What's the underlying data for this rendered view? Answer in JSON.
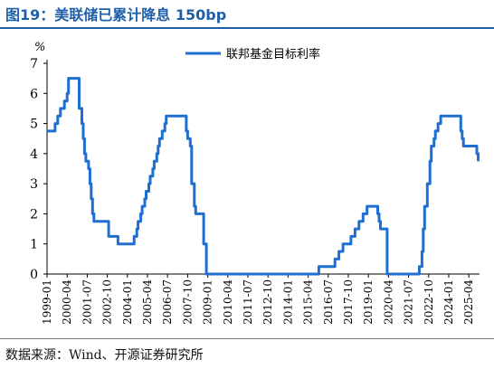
{
  "figure": {
    "title": "图19：美联储已累计降息 150bp",
    "source": "数据来源：Wind、开源证券研究所"
  },
  "colors": {
    "title": "#1f5fa8",
    "series": "#1e6fd1",
    "axis": "#000000"
  },
  "chart_data": {
    "type": "line",
    "title": "",
    "xlabel": "",
    "ylabel": "%",
    "ylim": [
      0,
      7
    ],
    "yticks": [
      "0",
      "1",
      "2",
      "3",
      "4",
      "5",
      "6",
      "7"
    ],
    "xticks": [
      "1999-01",
      "2000-04",
      "2001-07",
      "2002-10",
      "2004-01",
      "2005-04",
      "2006-07",
      "2007-10",
      "2009-01",
      "2010-04",
      "2011-07",
      "2012-10",
      "2014-01",
      "2015-04",
      "2016-07",
      "2017-10",
      "2019-01",
      "2020-04",
      "2021-07",
      "2022-10",
      "2024-01",
      "2025-04"
    ],
    "grid": false,
    "legend": {
      "position": "top-right",
      "entries": [
        "联邦基金目标利率"
      ]
    },
    "series": [
      {
        "name": "联邦基金目标利率",
        "color": "#1e6fd1",
        "points": [
          [
            "1999-01",
            4.75
          ],
          [
            "1999-06",
            4.75
          ],
          [
            "1999-07",
            5.0
          ],
          [
            "1999-09",
            5.25
          ],
          [
            "1999-11",
            5.5
          ],
          [
            "2000-02",
            5.75
          ],
          [
            "2000-04",
            6.0
          ],
          [
            "2000-05",
            6.5
          ],
          [
            "2000-12",
            6.5
          ],
          [
            "2001-01",
            5.5
          ],
          [
            "2001-03",
            5.0
          ],
          [
            "2001-04",
            4.5
          ],
          [
            "2001-05",
            4.0
          ],
          [
            "2001-06",
            3.75
          ],
          [
            "2001-08",
            3.5
          ],
          [
            "2001-09",
            3.0
          ],
          [
            "2001-10",
            2.5
          ],
          [
            "2001-11",
            2.0
          ],
          [
            "2001-12",
            1.75
          ],
          [
            "2002-11",
            1.25
          ],
          [
            "2003-06",
            1.0
          ],
          [
            "2004-06",
            1.25
          ],
          [
            "2004-08",
            1.5
          ],
          [
            "2004-09",
            1.75
          ],
          [
            "2004-11",
            2.0
          ],
          [
            "2004-12",
            2.25
          ],
          [
            "2005-02",
            2.5
          ],
          [
            "2005-03",
            2.75
          ],
          [
            "2005-05",
            3.0
          ],
          [
            "2005-06",
            3.25
          ],
          [
            "2005-08",
            3.5
          ],
          [
            "2005-09",
            3.75
          ],
          [
            "2005-11",
            4.0
          ],
          [
            "2005-12",
            4.25
          ],
          [
            "2006-01",
            4.5
          ],
          [
            "2006-03",
            4.75
          ],
          [
            "2006-05",
            5.0
          ],
          [
            "2006-06",
            5.25
          ],
          [
            "2007-08",
            5.25
          ],
          [
            "2007-09",
            4.75
          ],
          [
            "2007-10",
            4.5
          ],
          [
            "2007-12",
            4.25
          ],
          [
            "2008-01",
            3.0
          ],
          [
            "2008-03",
            2.25
          ],
          [
            "2008-04",
            2.0
          ],
          [
            "2008-10",
            1.0
          ],
          [
            "2008-12",
            0.0
          ],
          [
            "2015-12",
            0.25
          ],
          [
            "2016-12",
            0.5
          ],
          [
            "2017-03",
            0.75
          ],
          [
            "2017-06",
            1.0
          ],
          [
            "2017-12",
            1.25
          ],
          [
            "2018-03",
            1.5
          ],
          [
            "2018-06",
            1.75
          ],
          [
            "2018-09",
            2.0
          ],
          [
            "2018-12",
            2.25
          ],
          [
            "2019-07",
            2.25
          ],
          [
            "2019-08",
            2.0
          ],
          [
            "2019-09",
            1.75
          ],
          [
            "2019-10",
            1.5
          ],
          [
            "2020-03",
            0.0
          ],
          [
            "2022-03",
            0.25
          ],
          [
            "2022-05",
            0.75
          ],
          [
            "2022-06",
            1.5
          ],
          [
            "2022-07",
            2.25
          ],
          [
            "2022-09",
            3.0
          ],
          [
            "2022-11",
            3.75
          ],
          [
            "2022-12",
            4.25
          ],
          [
            "2023-02",
            4.5
          ],
          [
            "2023-03",
            4.75
          ],
          [
            "2023-05",
            5.0
          ],
          [
            "2023-07",
            5.25
          ],
          [
            "2024-09",
            5.25
          ],
          [
            "2024-10",
            4.75
          ],
          [
            "2024-11",
            4.5
          ],
          [
            "2024-12",
            4.25
          ],
          [
            "2025-09",
            4.25
          ],
          [
            "2025-10",
            4.0
          ],
          [
            "2025-11",
            3.75
          ]
        ]
      }
    ]
  }
}
